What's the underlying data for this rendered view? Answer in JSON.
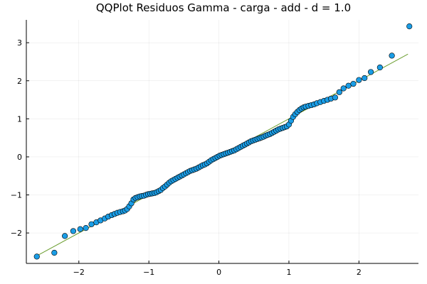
{
  "chart_data": {
    "type": "scatter",
    "title": "QQPlot Residuos Gamma - carga - add - d = 1.0",
    "xlabel": "",
    "ylabel": "",
    "xlim": [
      -2.75,
      2.85
    ],
    "ylim": [
      -2.8,
      3.6
    ],
    "xticks": [
      -2,
      -1,
      0,
      1,
      2
    ],
    "yticks": [
      -2,
      -1,
      0,
      1,
      2,
      3
    ],
    "xtick_labels": [
      "−2",
      "−1",
      "0",
      "1",
      "2"
    ],
    "ytick_labels": [
      "−2",
      "−1",
      "0",
      "1",
      "2",
      "3"
    ],
    "grid": true,
    "legend": "none",
    "colors": {
      "points": "#1a9de6",
      "point_edge": "#000000",
      "reference_line": "#6b9e2f"
    },
    "reference_line": {
      "x": [
        -2.6,
        2.7
      ],
      "y": [
        -2.6,
        2.7
      ]
    },
    "series": [
      {
        "values": [
          [
            -2.6,
            -2.62
          ],
          [
            -2.35,
            -2.52
          ],
          [
            -2.2,
            -2.08
          ],
          [
            -2.08,
            -1.95
          ],
          [
            -1.98,
            -1.9
          ],
          [
            -1.9,
            -1.87
          ],
          [
            -1.82,
            -1.77
          ],
          [
            -1.75,
            -1.72
          ],
          [
            -1.69,
            -1.67
          ],
          [
            -1.63,
            -1.62
          ],
          [
            -1.58,
            -1.57
          ],
          [
            -1.53,
            -1.53
          ],
          [
            -1.49,
            -1.5
          ],
          [
            -1.45,
            -1.47
          ],
          [
            -1.41,
            -1.45
          ],
          [
            -1.37,
            -1.43
          ],
          [
            -1.34,
            -1.41
          ],
          [
            -1.31,
            -1.37
          ],
          [
            -1.28,
            -1.3
          ],
          [
            -1.25,
            -1.22
          ],
          [
            -1.22,
            -1.12
          ],
          [
            -1.19,
            -1.08
          ],
          [
            -1.16,
            -1.06
          ],
          [
            -1.13,
            -1.04
          ],
          [
            -1.1,
            -1.03
          ],
          [
            -1.07,
            -1.02
          ],
          [
            -1.04,
            -1.0
          ],
          [
            -1.01,
            -0.98
          ],
          [
            -0.98,
            -0.97
          ],
          [
            -0.95,
            -0.96
          ],
          [
            -0.92,
            -0.95
          ],
          [
            -0.89,
            -0.93
          ],
          [
            -0.86,
            -0.9
          ],
          [
            -0.83,
            -0.87
          ],
          [
            -0.8,
            -0.82
          ],
          [
            -0.77,
            -0.78
          ],
          [
            -0.74,
            -0.73
          ],
          [
            -0.71,
            -0.68
          ],
          [
            -0.68,
            -0.64
          ],
          [
            -0.65,
            -0.61
          ],
          [
            -0.62,
            -0.58
          ],
          [
            -0.59,
            -0.55
          ],
          [
            -0.56,
            -0.52
          ],
          [
            -0.53,
            -0.49
          ],
          [
            -0.5,
            -0.46
          ],
          [
            -0.47,
            -0.43
          ],
          [
            -0.44,
            -0.4
          ],
          [
            -0.41,
            -0.37
          ],
          [
            -0.38,
            -0.35
          ],
          [
            -0.35,
            -0.33
          ],
          [
            -0.32,
            -0.31
          ],
          [
            -0.29,
            -0.28
          ],
          [
            -0.26,
            -0.25
          ],
          [
            -0.23,
            -0.22
          ],
          [
            -0.2,
            -0.2
          ],
          [
            -0.17,
            -0.17
          ],
          [
            -0.14,
            -0.13
          ],
          [
            -0.11,
            -0.09
          ],
          [
            -0.08,
            -0.06
          ],
          [
            -0.05,
            -0.03
          ],
          [
            -0.02,
            0.0
          ],
          [
            0.01,
            0.03
          ],
          [
            0.04,
            0.05
          ],
          [
            0.07,
            0.07
          ],
          [
            0.1,
            0.09
          ],
          [
            0.13,
            0.11
          ],
          [
            0.16,
            0.13
          ],
          [
            0.19,
            0.15
          ],
          [
            0.22,
            0.17
          ],
          [
            0.25,
            0.2
          ],
          [
            0.28,
            0.23
          ],
          [
            0.31,
            0.26
          ],
          [
            0.34,
            0.29
          ],
          [
            0.37,
            0.32
          ],
          [
            0.4,
            0.35
          ],
          [
            0.43,
            0.38
          ],
          [
            0.46,
            0.41
          ],
          [
            0.49,
            0.43
          ],
          [
            0.52,
            0.45
          ],
          [
            0.55,
            0.47
          ],
          [
            0.58,
            0.49
          ],
          [
            0.61,
            0.51
          ],
          [
            0.64,
            0.53
          ],
          [
            0.67,
            0.56
          ],
          [
            0.7,
            0.58
          ],
          [
            0.73,
            0.6
          ],
          [
            0.76,
            0.63
          ],
          [
            0.79,
            0.66
          ],
          [
            0.82,
            0.69
          ],
          [
            0.85,
            0.72
          ],
          [
            0.88,
            0.74
          ],
          [
            0.91,
            0.76
          ],
          [
            0.94,
            0.78
          ],
          [
            0.97,
            0.8
          ],
          [
            1.0,
            0.85
          ],
          [
            1.03,
            0.95
          ],
          [
            1.06,
            1.05
          ],
          [
            1.09,
            1.12
          ],
          [
            1.12,
            1.18
          ],
          [
            1.15,
            1.23
          ],
          [
            1.18,
            1.27
          ],
          [
            1.21,
            1.3
          ],
          [
            1.24,
            1.32
          ],
          [
            1.28,
            1.34
          ],
          [
            1.32,
            1.36
          ],
          [
            1.36,
            1.38
          ],
          [
            1.4,
            1.41
          ],
          [
            1.45,
            1.44
          ],
          [
            1.5,
            1.47
          ],
          [
            1.55,
            1.5
          ],
          [
            1.6,
            1.53
          ],
          [
            1.66,
            1.56
          ],
          [
            1.72,
            1.7
          ],
          [
            1.78,
            1.8
          ],
          [
            1.85,
            1.87
          ],
          [
            1.92,
            1.92
          ],
          [
            2.0,
            2.02
          ],
          [
            2.08,
            2.07
          ],
          [
            2.17,
            2.23
          ],
          [
            2.3,
            2.35
          ],
          [
            2.47,
            2.66
          ],
          [
            2.72,
            3.43
          ]
        ]
      }
    ]
  }
}
